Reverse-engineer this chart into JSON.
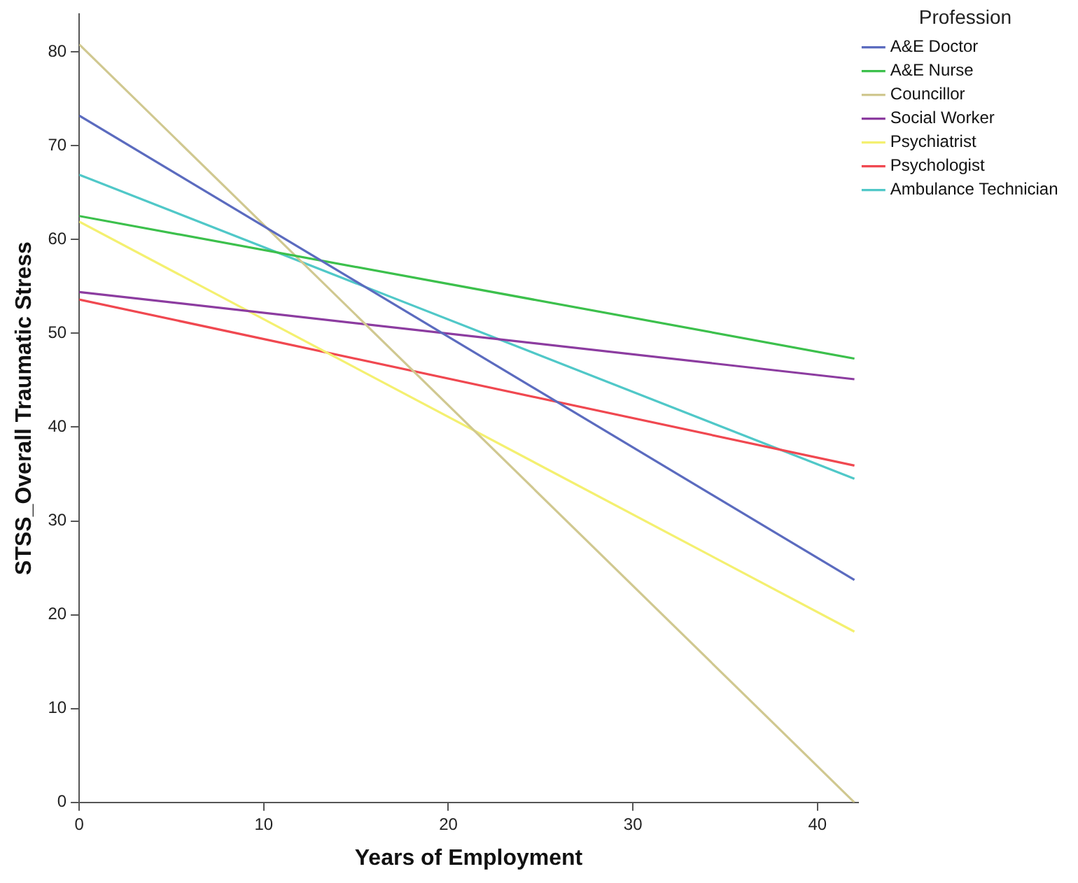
{
  "chart_data": {
    "type": "line",
    "xlabel": "Years of Employment",
    "ylabel": "STSS_Overall Traumatic Stress",
    "legend_title": "Profession",
    "x": [
      0,
      42
    ],
    "series": [
      {
        "name": "A&E Doctor",
        "color": "#5b6bbf",
        "values": [
          73.2,
          23.7
        ]
      },
      {
        "name": "A&E Nurse",
        "color": "#3cc04c",
        "values": [
          62.5,
          47.3
        ]
      },
      {
        "name": "Councillor",
        "color": "#d0c890",
        "values": [
          80.8,
          0
        ]
      },
      {
        "name": "Social Worker",
        "color": "#8c3ca0",
        "values": [
          54.4,
          45.1
        ]
      },
      {
        "name": "Psychiatrist",
        "color": "#f4f070",
        "values": [
          61.9,
          18.2
        ]
      },
      {
        "name": "Psychologist",
        "color": "#f04850",
        "values": [
          53.6,
          35.9
        ]
      },
      {
        "name": "Ambulance Technician",
        "color": "#50c8c8",
        "values": [
          66.9,
          34.5
        ]
      }
    ],
    "xlim": [
      0,
      42.2
    ],
    "xticks": [
      0,
      10,
      20,
      30,
      40
    ],
    "ylim": [
      0,
      84
    ],
    "yticks": [
      0,
      10,
      20,
      30,
      40,
      50,
      60,
      70,
      80
    ],
    "grid": false,
    "legend": "top right",
    "marker": "none",
    "line_style": "solid"
  }
}
